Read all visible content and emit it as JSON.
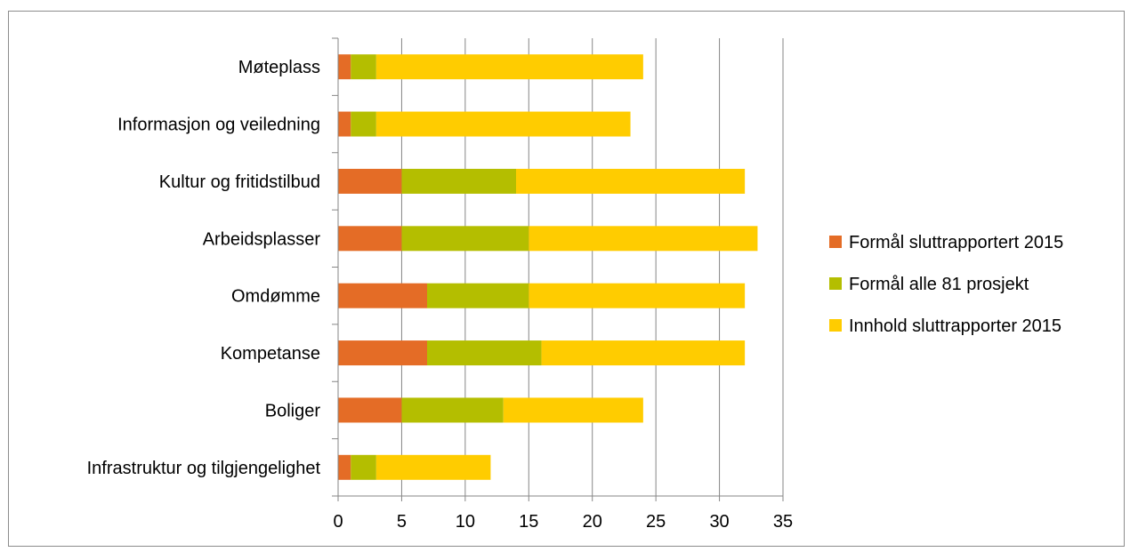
{
  "chart_data": {
    "type": "bar",
    "orientation": "horizontal",
    "stacked": true,
    "title": "",
    "xlabel": "",
    "ylabel": "",
    "categories": [
      "Møteplass",
      "Informasjon og veiledning",
      "Kultur og fritidstilbud",
      "Arbeidsplasser",
      "Omdømme",
      "Kompetanse",
      "Boliger",
      "Infrastruktur og tilgjengelighet"
    ],
    "series": [
      {
        "name": "Formål sluttrapportert 2015",
        "color": "#E46C26",
        "values": [
          1,
          1,
          5,
          5,
          7,
          7,
          5,
          1
        ]
      },
      {
        "name": "Formål alle 81 prosjekt",
        "color": "#B4BE00",
        "values": [
          2,
          2,
          9,
          10,
          8,
          9,
          8,
          2
        ]
      },
      {
        "name": "Innhold sluttrapporter 2015",
        "color": "#FFCC00",
        "values": [
          21,
          20,
          18,
          18,
          17,
          16,
          11,
          9
        ]
      }
    ],
    "xlim": [
      0,
      35
    ],
    "xticks": [
      "0",
      "5",
      "10",
      "15",
      "20",
      "25",
      "30",
      "35"
    ],
    "grid": true,
    "legend_position": "right"
  }
}
